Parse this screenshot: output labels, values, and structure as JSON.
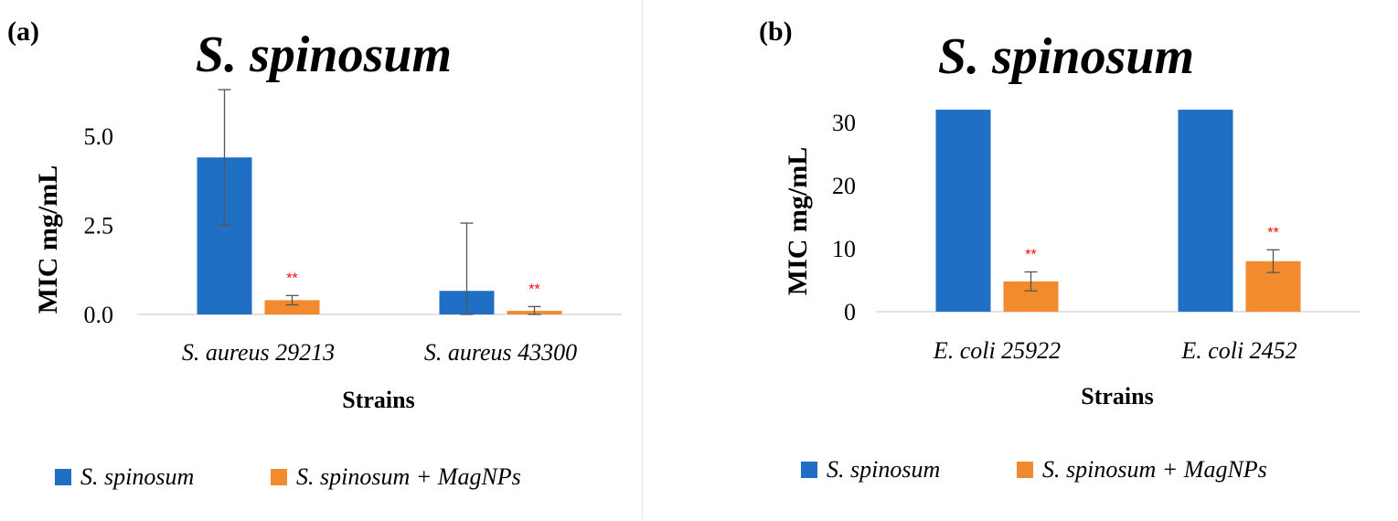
{
  "chart_data": [
    {
      "type": "bar",
      "panel_label": "(a)",
      "title": "S. spinosum",
      "xlabel": "Strains",
      "ylabel": "MIC mg/mL",
      "categories": [
        "S. aureus 29213",
        "S. aureus 43300"
      ],
      "ylim": [
        0,
        6.25
      ],
      "yticks": [
        0.0,
        2.5,
        5.0
      ],
      "ytick_labels": [
        "0.0",
        "2.5",
        "5.0"
      ],
      "grid": false,
      "legend_position": "bottom",
      "significance_marker": "**",
      "series": [
        {
          "name": "S. spinosum",
          "color": "#1f6fc5",
          "values": [
            4.4,
            0.66
          ],
          "errors": [
            1.9,
            1.9
          ],
          "markers": [
            "",
            ""
          ]
        },
        {
          "name": "S. spinosum + MagNPs",
          "color": "#f28a2e",
          "values": [
            0.4,
            0.1
          ],
          "errors": [
            0.13,
            0.12
          ],
          "markers": [
            "**",
            "**"
          ]
        }
      ]
    },
    {
      "type": "bar",
      "panel_label": "(b)",
      "title": "S. spinosum",
      "xlabel": "Strains",
      "ylabel": "MIC mg/mL",
      "categories": [
        "E. coli 25922",
        "E. coli 2452"
      ],
      "ylim": [
        0,
        32
      ],
      "yticks": [
        0,
        10,
        20,
        30
      ],
      "ytick_labels": [
        "0",
        "10",
        "20",
        "30"
      ],
      "grid": false,
      "legend_position": "bottom",
      "significance_marker": "**",
      "series": [
        {
          "name": "S. spinosum",
          "color": "#1f6fc5",
          "values": [
            32,
            32
          ],
          "errors": [
            0,
            0
          ],
          "markers": [
            "",
            ""
          ]
        },
        {
          "name": "S. spinosum + MagNPs",
          "color": "#f28a2e",
          "values": [
            4.8,
            8
          ],
          "errors": [
            1.5,
            1.8
          ],
          "markers": [
            "**",
            "**"
          ]
        }
      ]
    }
  ]
}
